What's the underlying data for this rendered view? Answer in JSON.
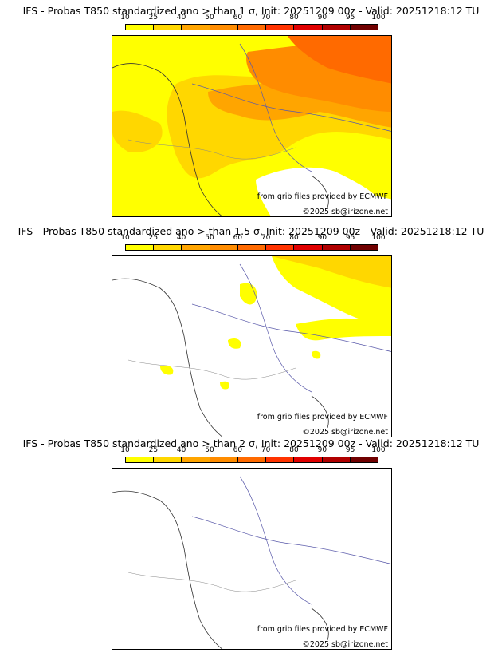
{
  "colorbar": {
    "ticks": [
      "10",
      "25",
      "40",
      "50",
      "60",
      "70",
      "80",
      "90",
      "95",
      "100"
    ],
    "colors": [
      "#ffff00",
      "#ffd700",
      "#ffa500",
      "#ff8c00",
      "#ff6a00",
      "#ff3300",
      "#e00000",
      "#b00000",
      "#700000"
    ]
  },
  "panels": [
    {
      "title": "IFS - Probas T850  standardized ano > than 1 σ, Init: 20251209 00z - Valid: 20251218:12 TU",
      "credit_source": "from grib files provided by ECMWF",
      "credit_copyright": "©2025 sb@irizone.net"
    },
    {
      "title": "IFS - Probas T850  standardized ano > than 1.5 σ, Init: 20251209 00z - Valid: 20251218:12 TU",
      "credit_source": "from grib files provided by ECMWF",
      "credit_copyright": "©2025 sb@irizone.net"
    },
    {
      "title": "IFS - Probas T850  standardized ano > than 2 σ, Init: 20251209 00z - Valid: 20251218:12 TU",
      "credit_source": "from grib files provided by ECMWF",
      "credit_copyright": "©2025 sb@irizone.net"
    }
  ]
}
